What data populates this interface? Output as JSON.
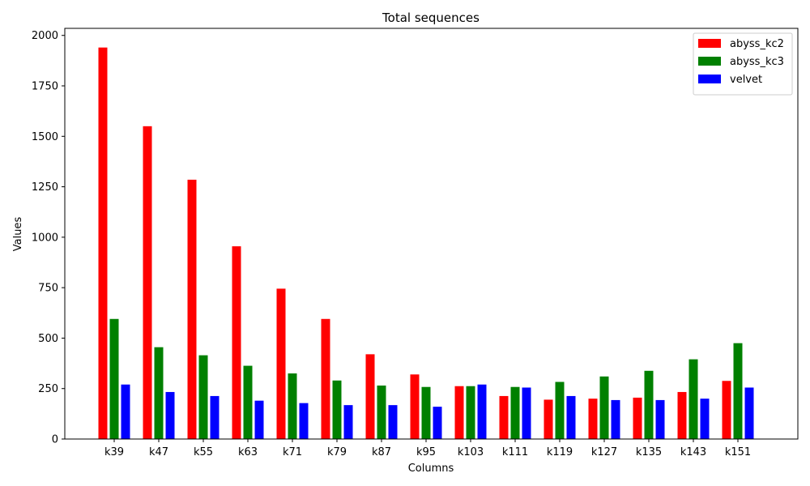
{
  "chart_data": {
    "type": "bar",
    "title": "Total sequences",
    "xlabel": "Columns",
    "ylabel": "Values",
    "ylim": [
      0,
      2035
    ],
    "yticks": [
      0,
      250,
      500,
      750,
      1000,
      1250,
      1500,
      1750,
      2000
    ],
    "categories": [
      "k39",
      "k47",
      "k55",
      "k63",
      "k71",
      "k79",
      "k87",
      "k95",
      "k103",
      "k111",
      "k119",
      "k127",
      "k135",
      "k143",
      "k151"
    ],
    "series": [
      {
        "name": "abyss_kc2",
        "color": "#ff0000",
        "values": [
          1940,
          1550,
          1285,
          955,
          745,
          595,
          420,
          320,
          262,
          213,
          195,
          200,
          205,
          233,
          288
        ]
      },
      {
        "name": "abyss_kc3",
        "color": "#008000",
        "values": [
          595,
          455,
          415,
          363,
          325,
          290,
          265,
          258,
          262,
          258,
          283,
          310,
          338,
          395,
          475
        ]
      },
      {
        "name": "velvet",
        "color": "#0000ff",
        "values": [
          270,
          233,
          213,
          190,
          178,
          168,
          168,
          160,
          270,
          255,
          213,
          193,
          193,
          200,
          255
        ]
      }
    ],
    "legend_position": "top-right",
    "grid": false
  }
}
